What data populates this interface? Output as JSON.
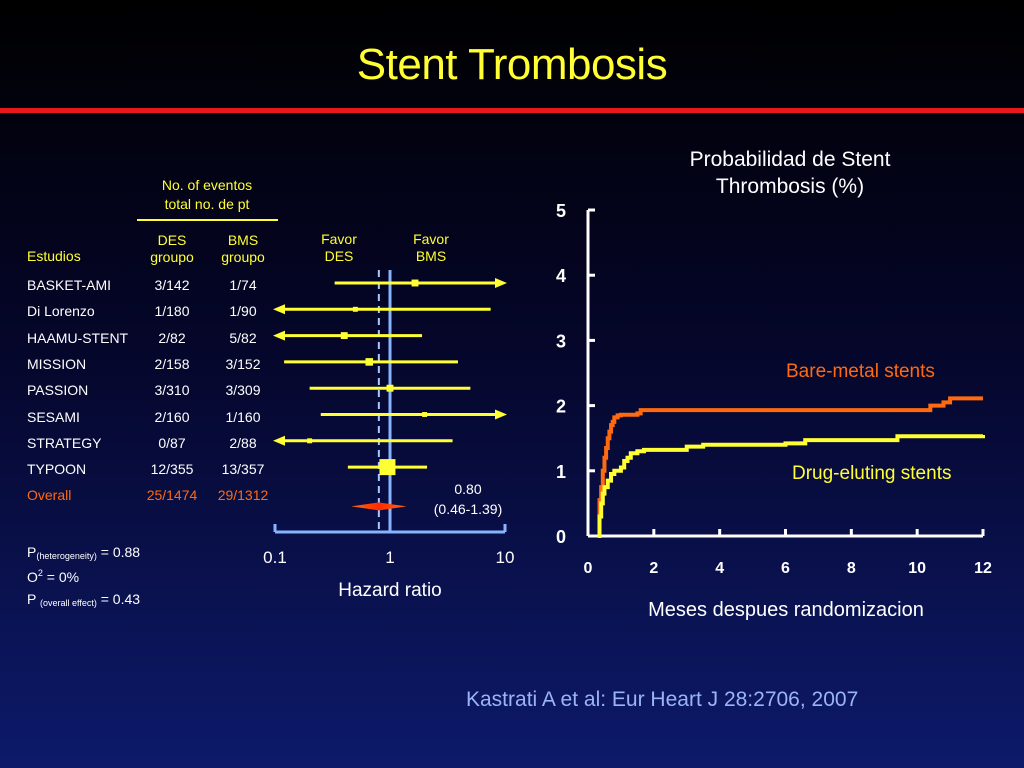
{
  "title": "Stent Trombosis",
  "citation": "Kastrati A et al:  Eur Heart J 28:2706, 2007",
  "forest": {
    "events_header_line1": "No. of eventos",
    "events_header_line2": "total no. de pt",
    "studies_header": "Estudios",
    "des_header_line1": "DES",
    "des_header_line2": "groupo",
    "bms_header_line1": "BMS",
    "bms_header_line2": "groupo",
    "favor_des_line1": "Favor",
    "favor_des_line2": "DES",
    "favor_bms_line1": "Favor",
    "favor_bms_line2": "BMS",
    "overall_estimate_line1": "0.80",
    "overall_estimate_line2": "(0.46-1.39)",
    "xlabel": "Hazard ratio",
    "stat_heterogeneity_prefix": "P",
    "stat_heterogeneity_sub": "(heterogeneity)",
    "stat_heterogeneity_value": " = 0.88",
    "stat_i2_prefix": "O",
    "stat_i2_sup": "2",
    "stat_i2_value": " = 0%",
    "stat_overall_prefix": "P ",
    "stat_overall_sub": "(overall effect)",
    "stat_overall_value": " = 0.43",
    "rows": [
      {
        "study": "BASKET-AMI",
        "des": "3/142",
        "bms": "1/74"
      },
      {
        "study": "Di Lorenzo",
        "des": "1/180",
        "bms": "1/90"
      },
      {
        "study": "HAAMU-STENT",
        "des": "2/82",
        "bms": "5/82"
      },
      {
        "study": "MISSION",
        "des": "2/158",
        "bms": "3/152"
      },
      {
        "study": "PASSION",
        "des": "3/310",
        "bms": "3/309"
      },
      {
        "study": "SESAMI",
        "des": "2/160",
        "bms": "1/160"
      },
      {
        "study": "STRATEGY",
        "des": "0/87",
        "bms": "2/88"
      },
      {
        "study": "TYPOON",
        "des": "12/355",
        "bms": "13/357"
      },
      {
        "study": "Overall",
        "des": "25/1474",
        "bms": "29/1312"
      }
    ]
  },
  "km": {
    "title_line1": "Probabilidad de Stent",
    "title_line2": "Thrombosis (%)",
    "xlabel": "Meses despues randomizacion",
    "bms_label": "Bare-metal stents",
    "des_label": "Drug-eluting stents"
  },
  "chart_data": [
    {
      "type": "forest",
      "xscale": "log",
      "xlim": [
        0.1,
        10
      ],
      "xticks": [
        0.1,
        1,
        10
      ],
      "xtick_labels": [
        "0.1",
        "1",
        "10"
      ],
      "xlabel": "Hazard ratio",
      "reference_line": 1,
      "overall_line": 0.8,
      "series": [
        {
          "study": "BASKET-AMI",
          "hr": 1.65,
          "ci": [
            0.33,
            10
          ],
          "ci_upper_clipped": true,
          "weight": 0.3
        },
        {
          "study": "Di Lorenzo",
          "hr": 0.5,
          "ci": [
            0.1,
            7.5
          ],
          "ci_lower_clipped": true,
          "weight": 0.15
        },
        {
          "study": "HAAMU-STENT",
          "hr": 0.4,
          "ci": [
            0.1,
            1.9
          ],
          "ci_lower_clipped": true,
          "weight": 0.3
        },
        {
          "study": "MISSION",
          "hr": 0.66,
          "ci": [
            0.12,
            3.9
          ],
          "weight": 0.35
        },
        {
          "study": "PASSION",
          "hr": 1.0,
          "ci": [
            0.2,
            5.0
          ],
          "weight": 0.3
        },
        {
          "study": "SESAMI",
          "hr": 2.0,
          "ci": [
            0.25,
            10
          ],
          "ci_upper_clipped": true,
          "weight": 0.15
        },
        {
          "study": "STRATEGY",
          "hr": 0.2,
          "ci": [
            0.1,
            3.5
          ],
          "ci_lower_clipped": true,
          "weight": 0.15
        },
        {
          "study": "TYPOON",
          "hr": 0.95,
          "ci": [
            0.43,
            2.1
          ],
          "weight": 1.0
        },
        {
          "study": "Overall",
          "hr": 0.8,
          "ci": [
            0.46,
            1.39
          ],
          "diamond": true
        }
      ]
    },
    {
      "type": "line",
      "step": true,
      "title": "Probabilidad de Stent Thrombosis (%)",
      "xlabel": "Meses despues randomizacion",
      "xlim": [
        0,
        12
      ],
      "ylim": [
        0,
        5
      ],
      "xticks": [
        0,
        2,
        4,
        6,
        8,
        10,
        12
      ],
      "yticks": [
        0,
        1,
        2,
        3,
        4,
        5
      ],
      "series": [
        {
          "name": "Bare-metal stents",
          "color": "#ff6a10",
          "x": [
            0.3,
            0.35,
            0.4,
            0.45,
            0.5,
            0.55,
            0.6,
            0.65,
            0.7,
            0.75,
            0.8,
            0.9,
            1.0,
            1.5,
            1.6,
            2.0,
            5.0,
            8.0,
            10.4,
            10.8,
            11.0,
            12.0
          ],
          "y": [
            0.0,
            0.55,
            0.75,
            1.0,
            1.2,
            1.35,
            1.5,
            1.6,
            1.7,
            1.75,
            1.82,
            1.85,
            1.86,
            1.88,
            1.93,
            1.93,
            1.93,
            1.93,
            2.0,
            2.05,
            2.11,
            2.11
          ]
        },
        {
          "name": "Drug-eluting stents",
          "color": "#ffff33",
          "x": [
            0.3,
            0.35,
            0.4,
            0.45,
            0.5,
            0.6,
            0.7,
            0.8,
            0.9,
            1.0,
            1.1,
            1.2,
            1.3,
            1.5,
            1.7,
            3.0,
            3.5,
            6.0,
            6.6,
            9.4,
            12.0
          ],
          "y": [
            0.0,
            0.3,
            0.5,
            0.65,
            0.75,
            0.85,
            0.95,
            1.0,
            1.0,
            1.05,
            1.15,
            1.2,
            1.27,
            1.3,
            1.32,
            1.37,
            1.4,
            1.42,
            1.47,
            1.53,
            1.55
          ]
        }
      ]
    }
  ]
}
